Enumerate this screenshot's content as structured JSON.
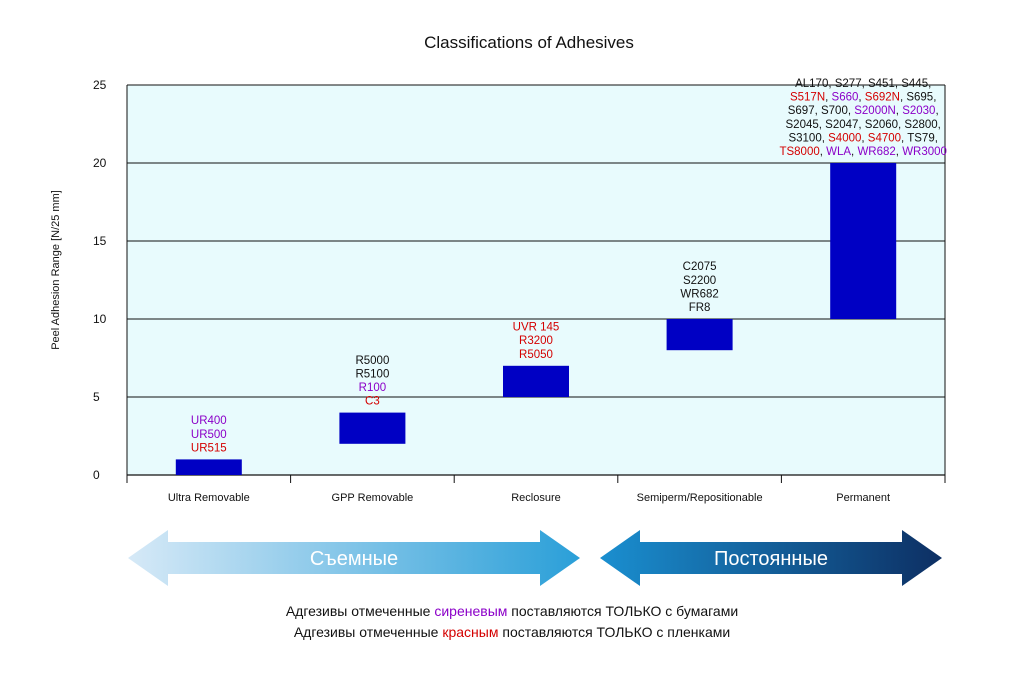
{
  "chart_data": {
    "type": "bar",
    "title": "Classifications of Adhesives",
    "ylabel": "Peel Adhesion Range [N/25 mm]",
    "xlabel": "",
    "ylim": [
      0,
      25
    ],
    "yticks": [
      "0",
      "5",
      "10",
      "15",
      "20",
      "25"
    ],
    "grid": true,
    "categories": [
      "Ultra Removable",
      "GPP Removable",
      "Reclosure",
      "Semiperm/Repositionable",
      "Permanent"
    ],
    "ranges": [
      [
        0,
        1
      ],
      [
        2,
        4
      ],
      [
        5,
        7
      ],
      [
        8,
        10
      ],
      [
        10,
        20
      ]
    ],
    "bar_color": "#0000c4",
    "plot_background": "#e8fbfd",
    "product_labels": [
      [
        [
          {
            "t": "UR400",
            "c": "purple"
          }
        ],
        [
          {
            "t": "UR500",
            "c": "purple"
          }
        ],
        [
          {
            "t": "UR515",
            "c": "red"
          }
        ]
      ],
      [
        [
          {
            "t": "R5000",
            "c": "black"
          }
        ],
        [
          {
            "t": "R5100",
            "c": "black"
          }
        ],
        [
          {
            "t": "R100",
            "c": "purple"
          }
        ],
        [
          {
            "t": "C3",
            "c": "red"
          }
        ]
      ],
      [
        [
          {
            "t": "UVR 145",
            "c": "red"
          }
        ],
        [
          {
            "t": "R3200",
            "c": "red"
          }
        ],
        [
          {
            "t": "R5050",
            "c": "red"
          }
        ]
      ],
      [
        [
          {
            "t": "C2075",
            "c": "black"
          }
        ],
        [
          {
            "t": "S2200",
            "c": "black"
          }
        ],
        [
          {
            "t": "WR682",
            "c": "black"
          }
        ],
        [
          {
            "t": "FR8",
            "c": "black"
          }
        ]
      ],
      [
        [
          {
            "t": "AL170, S277, S451, S445,",
            "c": "black"
          }
        ],
        [
          {
            "t": "S517N",
            "c": "red"
          },
          {
            "t": ", ",
            "c": "black"
          },
          {
            "t": "S660",
            "c": "purple"
          },
          {
            "t": ", ",
            "c": "black"
          },
          {
            "t": "S692N",
            "c": "red"
          },
          {
            "t": ", S695,",
            "c": "black"
          }
        ],
        [
          {
            "t": "S697, S700, ",
            "c": "black"
          },
          {
            "t": "S2000N",
            "c": "purple"
          },
          {
            "t": ", ",
            "c": "black"
          },
          {
            "t": "S2030",
            "c": "purple"
          },
          {
            "t": ",",
            "c": "black"
          }
        ],
        [
          {
            "t": "S2045, S2047, S2060, S2800,",
            "c": "black"
          }
        ],
        [
          {
            "t": "S3100, ",
            "c": "black"
          },
          {
            "t": "S4000",
            "c": "red"
          },
          {
            "t": ", ",
            "c": "black"
          },
          {
            "t": "S4700",
            "c": "red"
          },
          {
            "t": ", TS79,",
            "c": "black"
          }
        ],
        [
          {
            "t": "TS8000",
            "c": "red"
          },
          {
            "t": ", ",
            "c": "black"
          },
          {
            "t": "WLA",
            "c": "purple"
          },
          {
            "t": ", ",
            "c": "black"
          },
          {
            "t": "WR682",
            "c": "purple"
          },
          {
            "t": ", ",
            "c": "black"
          },
          {
            "t": "WR3000",
            "c": "purple"
          }
        ]
      ]
    ],
    "arrows": [
      {
        "label": "Съемные",
        "span": [
          "Ultra Removable",
          "Reclosure"
        ]
      },
      {
        "label": "Постоянные",
        "span": [
          "Semiperm/Repositionable",
          "Permanent"
        ]
      }
    ]
  },
  "colors": {
    "purple": "#8b00c8",
    "red": "#d40000",
    "black": "#111111"
  },
  "notes": {
    "line1": [
      {
        "t": "Адгезивы отмеченные ",
        "c": "black"
      },
      {
        "t": "сиреневым",
        "c": "purple"
      },
      {
        "t": " поставляются ТОЛЬКО с бумагами",
        "c": "black"
      }
    ],
    "line2": [
      {
        "t": "Адгезивы отмеченные ",
        "c": "black"
      },
      {
        "t": "красным",
        "c": "red"
      },
      {
        "t": " поставляются ТОЛЬКО с пленками",
        "c": "black"
      }
    ]
  }
}
